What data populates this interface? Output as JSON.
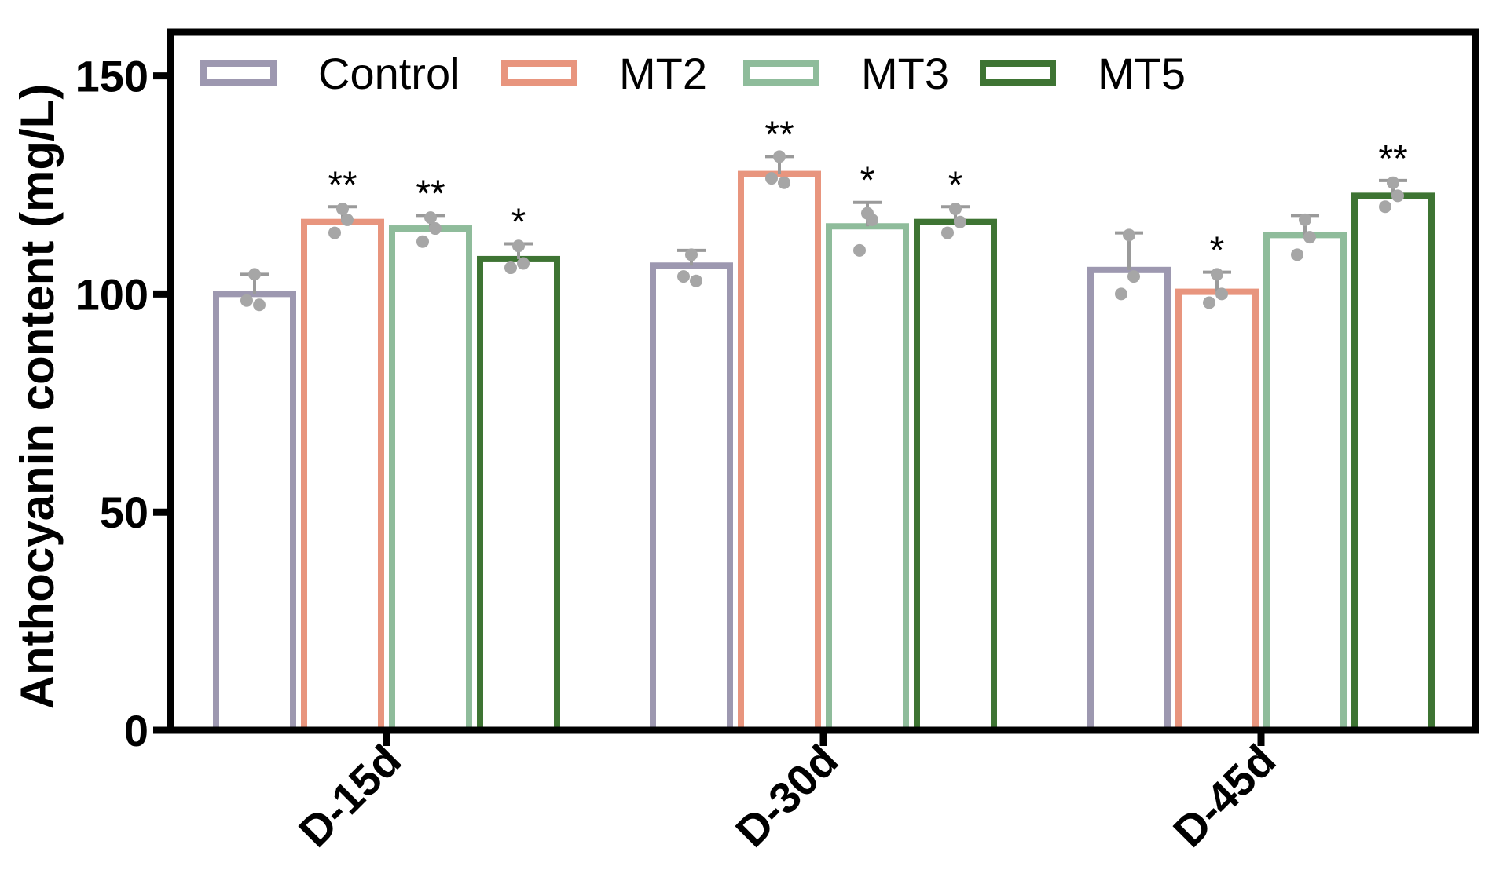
{
  "chart_data": {
    "type": "bar",
    "title": "",
    "xlabel": "",
    "ylabel": "Anthocyanin content (mg/L)",
    "ylim": [
      0,
      160
    ],
    "yticks": [
      0,
      50,
      100,
      150
    ],
    "categories": [
      "D-15d",
      "D-30d",
      "D-45d"
    ],
    "legend_position": "top-left",
    "series": [
      {
        "name": "Control",
        "color": "#9d98b0",
        "values": [
          100,
          106.5,
          105.5
        ],
        "errors": [
          4.5,
          3.5,
          8.5
        ],
        "points": [
          [
            104.5,
            98.5,
            97.5
          ],
          [
            109,
            104,
            103
          ],
          [
            113.5,
            100,
            104
          ]
        ],
        "significance": [
          "",
          "",
          ""
        ]
      },
      {
        "name": "MT2",
        "color": "#e8957e",
        "values": [
          116.5,
          127.5,
          100.5
        ],
        "errors": [
          3.5,
          4,
          4.5
        ],
        "points": [
          [
            119.5,
            114,
            117
          ],
          [
            131.5,
            126.5,
            125.5
          ],
          [
            104.5,
            98,
            100
          ]
        ],
        "significance": [
          "**",
          "**",
          "*"
        ]
      },
      {
        "name": "MT3",
        "color": "#8fbc9b",
        "values": [
          115,
          115.5,
          113.5
        ],
        "errors": [
          3,
          5.5,
          4.5
        ],
        "points": [
          [
            117.5,
            112,
            115
          ],
          [
            118.5,
            110,
            117
          ],
          [
            117,
            109,
            113
          ]
        ],
        "significance": [
          "**",
          "*",
          ""
        ]
      },
      {
        "name": "MT5",
        "color": "#3e7433",
        "values": [
          108,
          116.5,
          122.5
        ],
        "errors": [
          3.5,
          3.5,
          3.5
        ],
        "points": [
          [
            111,
            106,
            107
          ],
          [
            119.5,
            114,
            116.5
          ],
          [
            125.5,
            120,
            122.5
          ]
        ],
        "significance": [
          "*",
          "*",
          "**"
        ]
      }
    ]
  }
}
